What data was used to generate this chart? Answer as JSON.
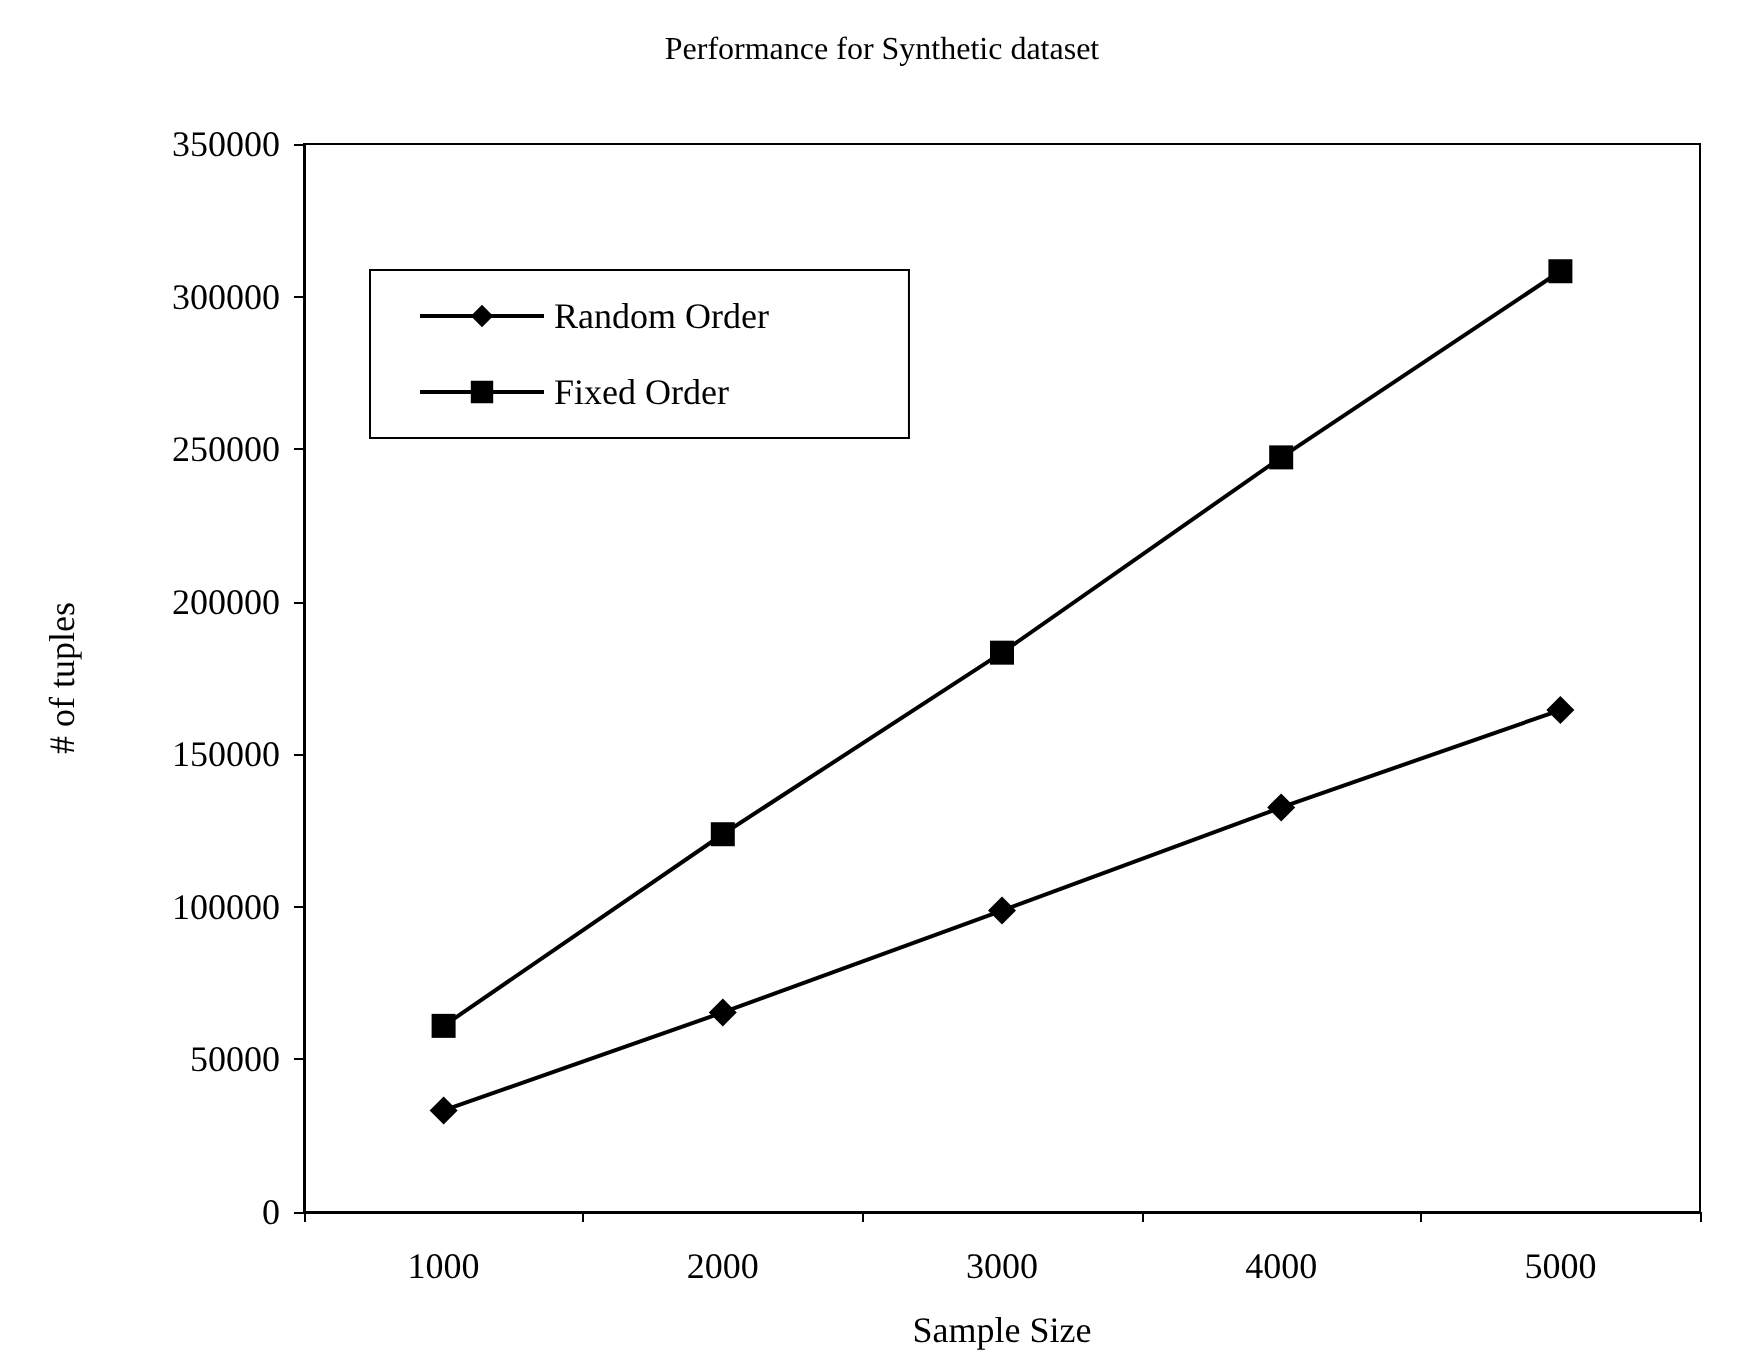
{
  "chart_data": {
    "type": "line",
    "title": "Performance for Synthetic dataset",
    "xlabel": "Sample Size",
    "ylabel": "# of tuples",
    "categories": [
      "1000",
      "2000",
      "3000",
      "4000",
      "5000"
    ],
    "series": [
      {
        "name": "Random Order",
        "color": "#000000",
        "marker": "diamond",
        "values": [
          33300,
          65400,
          98800,
          132600,
          164500
        ]
      },
      {
        "name": "Fixed Order",
        "color": "#000000",
        "marker": "square",
        "values": [
          61000,
          123800,
          183300,
          247300,
          308300
        ]
      }
    ],
    "ylim": [
      0,
      350000
    ],
    "yticks": [
      0,
      50000,
      100000,
      150000,
      200000,
      250000,
      300000,
      350000
    ],
    "grid": false,
    "legend": "top left",
    "line_style": "solid"
  }
}
